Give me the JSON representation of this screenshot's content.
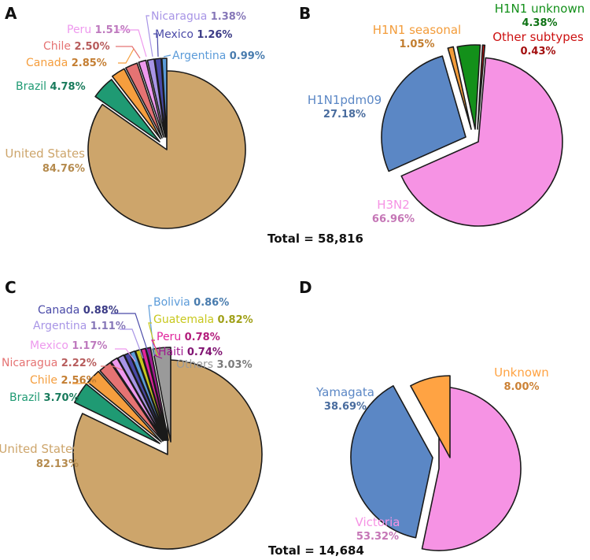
{
  "chart_data": [
    {
      "type": "pie",
      "panel_label": "A",
      "categories": [
        "United States",
        "Brazil",
        "Canada",
        "Chile",
        "Peru",
        "Nicaragua",
        "Mexico",
        "Argentina"
      ],
      "values": [
        84.76,
        4.78,
        2.85,
        2.5,
        1.51,
        1.38,
        1.26,
        0.99
      ],
      "value_labels": [
        "84.76%",
        "4.78%",
        "2.85%",
        "2.50%",
        "1.51%",
        "1.38%",
        "1.26%",
        "0.99%"
      ],
      "colors": [
        "#cda56b",
        "#1f9a73",
        "#f59e3e",
        "#e57373",
        "#ee99ee",
        "#a895e6",
        "#4a4aa8",
        "#5b9bd9"
      ],
      "exploded": "all slices except United States pulled out"
    },
    {
      "type": "pie",
      "panel_label": "B",
      "categories": [
        "H3N2",
        "H1N1pdm09",
        "H1N1 seasonal",
        "H1N1 unknown",
        "Other subtypes"
      ],
      "values": [
        66.96,
        27.18,
        1.05,
        4.38,
        0.43
      ],
      "value_labels": [
        "66.96%",
        "27.18%",
        "1.05%",
        "4.38%",
        "0.43%"
      ],
      "colors": [
        "#f693e4",
        "#5b87c5",
        "#f39c3a",
        "#13901a",
        "#cc1111"
      ],
      "exploded": "all slices separated",
      "total_label": "Total = 58,816"
    },
    {
      "type": "pie",
      "panel_label": "C",
      "categories": [
        "United States",
        "Brazil",
        "Chile",
        "Nicaragua",
        "Mexico",
        "Argentina",
        "Canada",
        "Bolivia",
        "Guatemala",
        "Peru",
        "Haiti",
        "Others"
      ],
      "values": [
        82.13,
        3.7,
        2.56,
        2.22,
        1.17,
        1.11,
        0.88,
        0.86,
        0.82,
        0.78,
        0.74,
        3.03
      ],
      "value_labels": [
        "82.13%",
        "3.70%",
        "2.56%",
        "2.22%",
        "1.17%",
        "1.11%",
        "0.88%",
        "0.86%",
        "0.82%",
        "0.78%",
        "0.74%",
        "3.03%"
      ],
      "colors": [
        "#cda56b",
        "#1f9a73",
        "#f59e3e",
        "#e57373",
        "#ee99ee",
        "#a895e6",
        "#4a4aa8",
        "#5b9bd9",
        "#c8c81e",
        "#e0249b",
        "#a0198f",
        "#9a9a9a"
      ],
      "exploded": "all slices except United States pulled out",
      "total_label": "Total = 14,684"
    },
    {
      "type": "pie",
      "panel_label": "D",
      "categories": [
        "Victoria",
        "Yamagata",
        "Unknown"
      ],
      "values": [
        53.32,
        38.69,
        8.0
      ],
      "value_labels": [
        "53.32%",
        "38.69%",
        "8.00%"
      ],
      "colors": [
        "#f693e4",
        "#5b87c5",
        "#ffa343"
      ],
      "exploded": "all slices separated"
    }
  ]
}
